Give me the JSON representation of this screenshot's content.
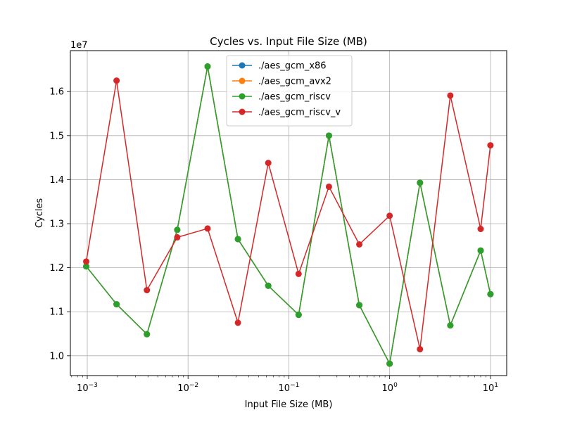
{
  "chart_data": {
    "type": "line",
    "title": "Cycles vs. Input File Size (MB)",
    "xlabel": "Input File Size (MB)",
    "ylabel": "Cycles",
    "xscale": "log",
    "xlim": [
      0.00068,
      14.5
    ],
    "ylim": [
      9550000,
      16930000
    ],
    "y_offset_label": "1e7",
    "x_ticks": [
      {
        "value": 0.001,
        "base": "10",
        "exp": "−3"
      },
      {
        "value": 0.01,
        "base": "10",
        "exp": "−2"
      },
      {
        "value": 0.1,
        "base": "10",
        "exp": "−1"
      },
      {
        "value": 1,
        "base": "10",
        "exp": "0"
      },
      {
        "value": 10,
        "base": "10",
        "exp": "1"
      }
    ],
    "y_ticks": [
      {
        "value": 10000000,
        "label": "1.0"
      },
      {
        "value": 11000000,
        "label": "1.1"
      },
      {
        "value": 12000000,
        "label": "1.2"
      },
      {
        "value": 13000000,
        "label": "1.3"
      },
      {
        "value": 14000000,
        "label": "1.4"
      },
      {
        "value": 15000000,
        "label": "1.5"
      },
      {
        "value": 16000000,
        "label": "1.6"
      }
    ],
    "grid": true,
    "legend_position": "top-center",
    "x": [
      0.0009765625,
      0.001953125,
      0.00390625,
      0.0078125,
      0.015625,
      0.03125,
      0.0625,
      0.125,
      0.25,
      0.5,
      1,
      2,
      4,
      8,
      10
    ],
    "series": [
      {
        "name": "./aes_gcm_x86",
        "color": "#1f77b4",
        "values": [
          12030000,
          11170000,
          10490000,
          12860000,
          16570000,
          12650000,
          11590000,
          10930000,
          15000000,
          11150000,
          9820000,
          13930000,
          10690000,
          12390000,
          11400000
        ]
      },
      {
        "name": "./aes_gcm_avx2",
        "color": "#ff7f0e",
        "values": [
          12030000,
          11170000,
          10490000,
          12860000,
          16570000,
          12650000,
          11590000,
          10930000,
          15000000,
          11150000,
          9820000,
          13930000,
          10690000,
          12390000,
          11400000
        ]
      },
      {
        "name": "./aes_gcm_riscv",
        "color": "#2ca02c",
        "values": [
          12030000,
          11170000,
          10490000,
          12860000,
          16570000,
          12650000,
          11590000,
          10930000,
          15000000,
          11150000,
          9820000,
          13930000,
          10690000,
          12390000,
          11400000
        ]
      },
      {
        "name": "./aes_gcm_riscv_v",
        "color": "#d62728",
        "values": [
          12140000,
          16250000,
          11490000,
          12690000,
          12890000,
          10750000,
          14380000,
          11860000,
          13840000,
          12530000,
          13180000,
          10150000,
          15910000,
          12880000,
          14780000
        ]
      }
    ]
  }
}
